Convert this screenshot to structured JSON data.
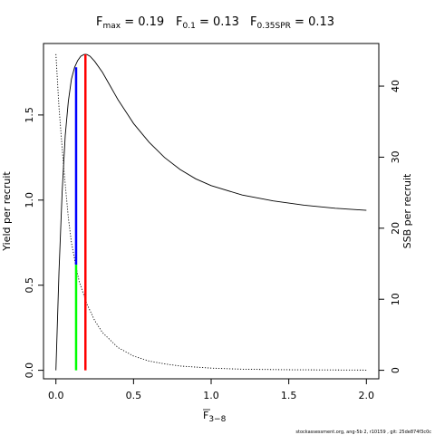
{
  "chart_data": {
    "type": "line",
    "title_parts": [
      {
        "main": "F",
        "sub": "max",
        "rest": " = 0.19"
      },
      {
        "main": "F",
        "sub": "0.1",
        "rest": " = 0.13"
      },
      {
        "main": "F",
        "sub": "0.35SPR",
        "rest": " = 0.13"
      }
    ],
    "xlabel": {
      "main": "F",
      "sub": "3−8"
    },
    "ylabel_left": "Yield per recruit",
    "ylabel_right": "SSB per recruit",
    "xlim": [
      -0.08,
      2.08
    ],
    "ylim_left": [
      -0.05,
      1.92
    ],
    "ylim_right": [
      -1.2,
      46.0
    ],
    "x_ticks": [
      0,
      0.5,
      1,
      1.5,
      2
    ],
    "x_tick_labels": [
      "0.0",
      "0.5",
      "1.0",
      "1.5",
      "2.0"
    ],
    "y_left_ticks": [
      0,
      0.5,
      1,
      1.5
    ],
    "y_left_tick_labels": [
      "0.0",
      "0.5",
      "1.0",
      "1.5"
    ],
    "y_right_ticks": [
      0,
      10,
      20,
      30,
      40
    ],
    "y_right_tick_labels": [
      "0",
      "10",
      "20",
      "30",
      "40"
    ],
    "series": [
      {
        "axis": "left",
        "style": "solid",
        "x": [
          0,
          0.02,
          0.04,
          0.06,
          0.08,
          0.1,
          0.12,
          0.14,
          0.16,
          0.18,
          0.19,
          0.2,
          0.22,
          0.25,
          0.3,
          0.35,
          0.4,
          0.45,
          0.5,
          0.6,
          0.7,
          0.8,
          0.9,
          1.0,
          1.2,
          1.4,
          1.6,
          1.8,
          2.0
        ],
        "y": [
          0,
          0.58,
          1.05,
          1.38,
          1.58,
          1.71,
          1.78,
          1.82,
          1.845,
          1.855,
          1.856,
          1.855,
          1.845,
          1.815,
          1.75,
          1.67,
          1.59,
          1.52,
          1.45,
          1.34,
          1.25,
          1.18,
          1.125,
          1.085,
          1.03,
          0.995,
          0.97,
          0.952,
          0.94
        ]
      },
      {
        "axis": "right",
        "style": "dotted",
        "x": [
          0,
          0.02,
          0.05,
          0.08,
          0.1,
          0.13,
          0.15,
          0.2,
          0.25,
          0.3,
          0.4,
          0.5,
          0.6,
          0.7,
          0.8,
          1.0,
          1.2,
          1.5,
          2.0
        ],
        "y": [
          44.5,
          37.0,
          28.5,
          21.5,
          18.0,
          14.5,
          12.5,
          9.3,
          7.0,
          5.3,
          3.2,
          2.0,
          1.3,
          0.9,
          0.6,
          0.3,
          0.15,
          0.07,
          0.02
        ]
      }
    ],
    "reference_lines": [
      {
        "name": "F0.1",
        "color": "#0000ff",
        "x": 0.13,
        "y_from": 0.62,
        "y_to": 1.78
      },
      {
        "name": "F0.35SPR",
        "color": "#00ff00",
        "x": 0.13,
        "y_from": 0.0,
        "y_to": 0.62
      },
      {
        "name": "Fmax",
        "color": "#ff0000",
        "x": 0.19,
        "y_from": 0.0,
        "y_to": 1.856
      }
    ]
  },
  "footer_text": "stockassessment.org, ang-5b 2, r10159 , git: 25de874f3c0c"
}
